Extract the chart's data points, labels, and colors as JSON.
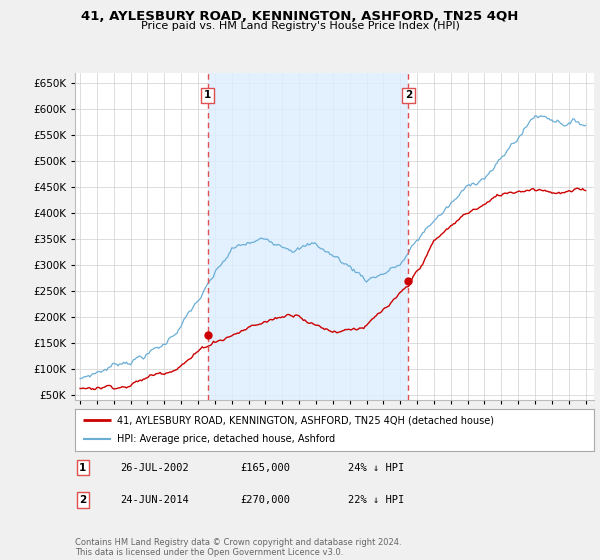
{
  "title": "41, AYLESBURY ROAD, KENNINGTON, ASHFORD, TN25 4QH",
  "subtitle": "Price paid vs. HM Land Registry's House Price Index (HPI)",
  "yticks": [
    50000,
    100000,
    150000,
    200000,
    250000,
    300000,
    350000,
    400000,
    450000,
    500000,
    550000,
    600000,
    650000
  ],
  "ylim": [
    40000,
    670000
  ],
  "xlim_start": 1994.7,
  "xlim_end": 2025.5,
  "sale1_date": 2002.57,
  "sale1_price": 165000,
  "sale1_label": "1",
  "sale2_date": 2014.48,
  "sale2_price": 270000,
  "sale2_label": "2",
  "hpi_color": "#6aaed6",
  "price_color": "#cc0000",
  "vline_color": "#e05050",
  "shade_color": "#ddeeff",
  "background_color": "#f0f0f0",
  "plot_bg_color": "#ffffff",
  "grid_color": "#d0d0d0",
  "legend_label1": "41, AYLESBURY ROAD, KENNINGTON, ASHFORD, TN25 4QH (detached house)",
  "legend_label2": "HPI: Average price, detached house, Ashford",
  "footer": "Contains HM Land Registry data © Crown copyright and database right 2024.\nThis data is licensed under the Open Government Licence v3.0.",
  "table_row1": [
    "1",
    "26-JUL-2002",
    "£165,000",
    "24% ↓ HPI"
  ],
  "table_row2": [
    "2",
    "24-JUN-2014",
    "£270,000",
    "22% ↓ HPI"
  ]
}
